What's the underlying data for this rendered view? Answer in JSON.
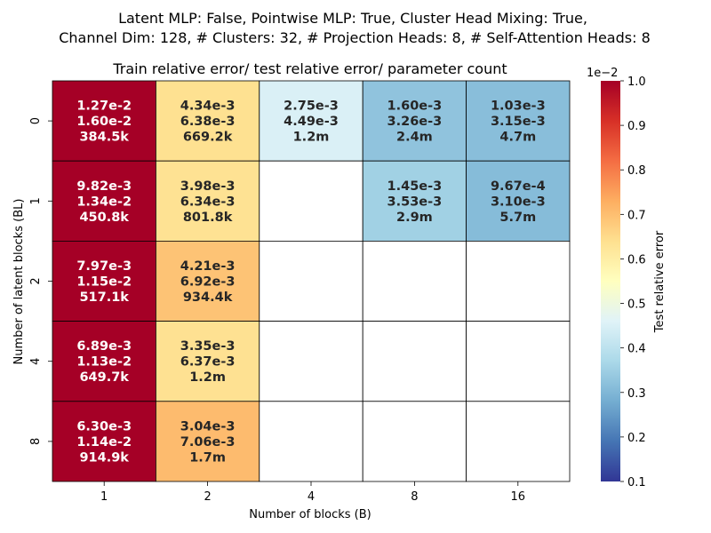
{
  "chart_data": {
    "type": "heatmap",
    "suptitle_lines": [
      "Latent MLP: False, Pointwise MLP: True, Cluster Head Mixing: True,",
      "Channel Dim: 128, # Clusters: 32, # Projection Heads: 8, # Self-Attention Heads: 8"
    ],
    "title": "Train relative error/ test relative error/ parameter count",
    "xlabel": "Number of blocks (B)",
    "ylabel": "Number of latent blocks (BL)",
    "x_categories": [
      "1",
      "2",
      "4",
      "8",
      "16"
    ],
    "y_categories": [
      "0",
      "1",
      "2",
      "4",
      "8"
    ],
    "colorbar": {
      "label": "Test relative error",
      "multiplier": "1e−2",
      "range": [
        0.1,
        1.0
      ],
      "ticks": [
        "0.1",
        "0.2",
        "0.3",
        "0.4",
        "0.5",
        "0.6",
        "0.7",
        "0.8",
        "0.9",
        "1.0"
      ],
      "colormap": "RdYlBu_r"
    },
    "cells": [
      {
        "row": 0,
        "col": 0,
        "train": "1.27e-2",
        "test": "1.60e-2",
        "params": "384.5k",
        "test_value": 0.016
      },
      {
        "row": 0,
        "col": 1,
        "train": "4.34e-3",
        "test": "6.38e-3",
        "params": "669.2k",
        "test_value": 0.00638
      },
      {
        "row": 0,
        "col": 2,
        "train": "2.75e-3",
        "test": "4.49e-3",
        "params": "1.2m",
        "test_value": 0.00449
      },
      {
        "row": 0,
        "col": 3,
        "train": "1.60e-3",
        "test": "3.26e-3",
        "params": "2.4m",
        "test_value": 0.00326
      },
      {
        "row": 0,
        "col": 4,
        "train": "1.03e-3",
        "test": "3.15e-3",
        "params": "4.7m",
        "test_value": 0.00315
      },
      {
        "row": 1,
        "col": 0,
        "train": "9.82e-3",
        "test": "1.34e-2",
        "params": "450.8k",
        "test_value": 0.0134
      },
      {
        "row": 1,
        "col": 1,
        "train": "3.98e-3",
        "test": "6.34e-3",
        "params": "801.8k",
        "test_value": 0.00634
      },
      {
        "row": 1,
        "col": 3,
        "train": "1.45e-3",
        "test": "3.53e-3",
        "params": "2.9m",
        "test_value": 0.00353
      },
      {
        "row": 1,
        "col": 4,
        "train": "9.67e-4",
        "test": "3.10e-3",
        "params": "5.7m",
        "test_value": 0.0031
      },
      {
        "row": 2,
        "col": 0,
        "train": "7.97e-3",
        "test": "1.15e-2",
        "params": "517.1k",
        "test_value": 0.0115
      },
      {
        "row": 2,
        "col": 1,
        "train": "4.21e-3",
        "test": "6.92e-3",
        "params": "934.4k",
        "test_value": 0.00692
      },
      {
        "row": 3,
        "col": 0,
        "train": "6.89e-3",
        "test": "1.13e-2",
        "params": "649.7k",
        "test_value": 0.0113
      },
      {
        "row": 3,
        "col": 1,
        "train": "3.35e-3",
        "test": "6.37e-3",
        "params": "1.2m",
        "test_value": 0.00637
      },
      {
        "row": 4,
        "col": 0,
        "train": "6.30e-3",
        "test": "1.14e-2",
        "params": "914.9k",
        "test_value": 0.0114
      },
      {
        "row": 4,
        "col": 1,
        "train": "3.04e-3",
        "test": "7.06e-3",
        "params": "1.7m",
        "test_value": 0.00706
      }
    ]
  }
}
